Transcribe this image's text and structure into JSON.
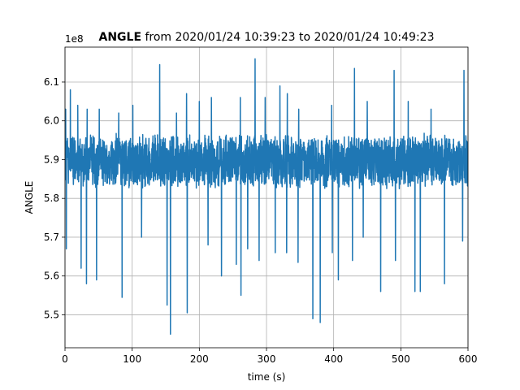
{
  "chart_data": {
    "type": "line",
    "title_bold": "ANGLE",
    "title_rest": " from 2020/01/24 10:39:23 to 2020/01/24 10:49:23",
    "xlabel": "time (s)",
    "ylabel": "ANGLE",
    "y_offset_label": "1e8",
    "xlim": [
      0,
      600
    ],
    "ylim": [
      5.415,
      6.19
    ],
    "x_ticks": [
      0,
      100,
      200,
      300,
      400,
      500,
      600
    ],
    "y_ticks": [
      5.5,
      5.6,
      5.7,
      5.8,
      5.9,
      6.0,
      6.1
    ],
    "x_tick_labels": [
      "0",
      "100",
      "200",
      "300",
      "400",
      "500",
      "600"
    ],
    "y_tick_labels": [
      "5.5",
      "5.6",
      "5.7",
      "5.8",
      "5.9",
      "6.0",
      "6.1"
    ],
    "grid": true,
    "series": [
      {
        "color": "#1f77b4",
        "x_range": [
          0,
          600
        ],
        "baseline_band": [
          5.82,
          5.97
        ],
        "peaks": [
          [
            1,
            6.03
          ],
          [
            8,
            6.08
          ],
          [
            19,
            6.04
          ],
          [
            33,
            6.03
          ],
          [
            51,
            6.03
          ],
          [
            80,
            6.02
          ],
          [
            101,
            6.04
          ],
          [
            141,
            6.145
          ],
          [
            166,
            6.02
          ],
          [
            181,
            6.07
          ],
          [
            200,
            6.05
          ],
          [
            218,
            6.06
          ],
          [
            261,
            6.06
          ],
          [
            283,
            6.16
          ],
          [
            298,
            6.06
          ],
          [
            320,
            6.09
          ],
          [
            331,
            6.07
          ],
          [
            348,
            6.03
          ],
          [
            397,
            6.04
          ],
          [
            431,
            6.135
          ],
          [
            450,
            6.05
          ],
          [
            490,
            6.13
          ],
          [
            511,
            6.05
          ],
          [
            545,
            6.03
          ],
          [
            594,
            6.13
          ]
        ],
        "troughs": [
          [
            2,
            5.67
          ],
          [
            24,
            5.62
          ],
          [
            32,
            5.58
          ],
          [
            47,
            5.59
          ],
          [
            85,
            5.545
          ],
          [
            114,
            5.7
          ],
          [
            152,
            5.525
          ],
          [
            157,
            5.45
          ],
          [
            182,
            5.505
          ],
          [
            213,
            5.68
          ],
          [
            233,
            5.6
          ],
          [
            255,
            5.63
          ],
          [
            262,
            5.55
          ],
          [
            272,
            5.67
          ],
          [
            289,
            5.64
          ],
          [
            313,
            5.66
          ],
          [
            330,
            5.66
          ],
          [
            347,
            5.635
          ],
          [
            369,
            5.49
          ],
          [
            380,
            5.48
          ],
          [
            398,
            5.66
          ],
          [
            407,
            5.59
          ],
          [
            428,
            5.64
          ],
          [
            444,
            5.7
          ],
          [
            470,
            5.56
          ],
          [
            492,
            5.64
          ],
          [
            521,
            5.56
          ],
          [
            529,
            5.56
          ],
          [
            565,
            5.58
          ],
          [
            592,
            5.69
          ]
        ]
      }
    ]
  }
}
